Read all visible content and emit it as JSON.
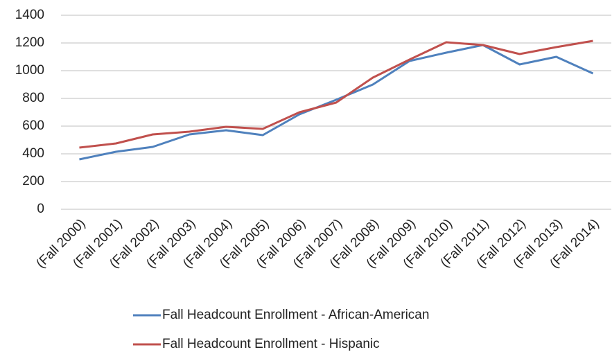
{
  "chart_data": {
    "type": "line",
    "categories": [
      "(Fall 2000)",
      "(Fall 2001)",
      "(Fall 2002)",
      "(Fall 2003)",
      "(Fall 2004)",
      "(Fall 2005)",
      "(Fall 2006)",
      "(Fall 2007)",
      "(Fall 2008)",
      "(Fall 2009)",
      "(Fall 2010)",
      "(Fall 2011)",
      "(Fall 2012)",
      "(Fall 2013)",
      "(Fall 2014)"
    ],
    "series": [
      {
        "name": "Fall Headcount Enrollment - African-American",
        "color": "#4f81bd",
        "values": [
          360,
          415,
          450,
          540,
          570,
          535,
          685,
          790,
          900,
          1070,
          1130,
          1185,
          1045,
          1100,
          980
        ]
      },
      {
        "name": "Fall Headcount Enrollment - Hispanic",
        "color": "#c0504d",
        "values": [
          445,
          475,
          540,
          560,
          595,
          580,
          700,
          770,
          950,
          1080,
          1205,
          1185,
          1120,
          1170,
          1215
        ]
      }
    ],
    "ylim": [
      0,
      1400
    ],
    "yticks": [
      0,
      200,
      400,
      600,
      800,
      1000,
      1200,
      1400
    ],
    "grid": true,
    "legend": "bottom"
  }
}
